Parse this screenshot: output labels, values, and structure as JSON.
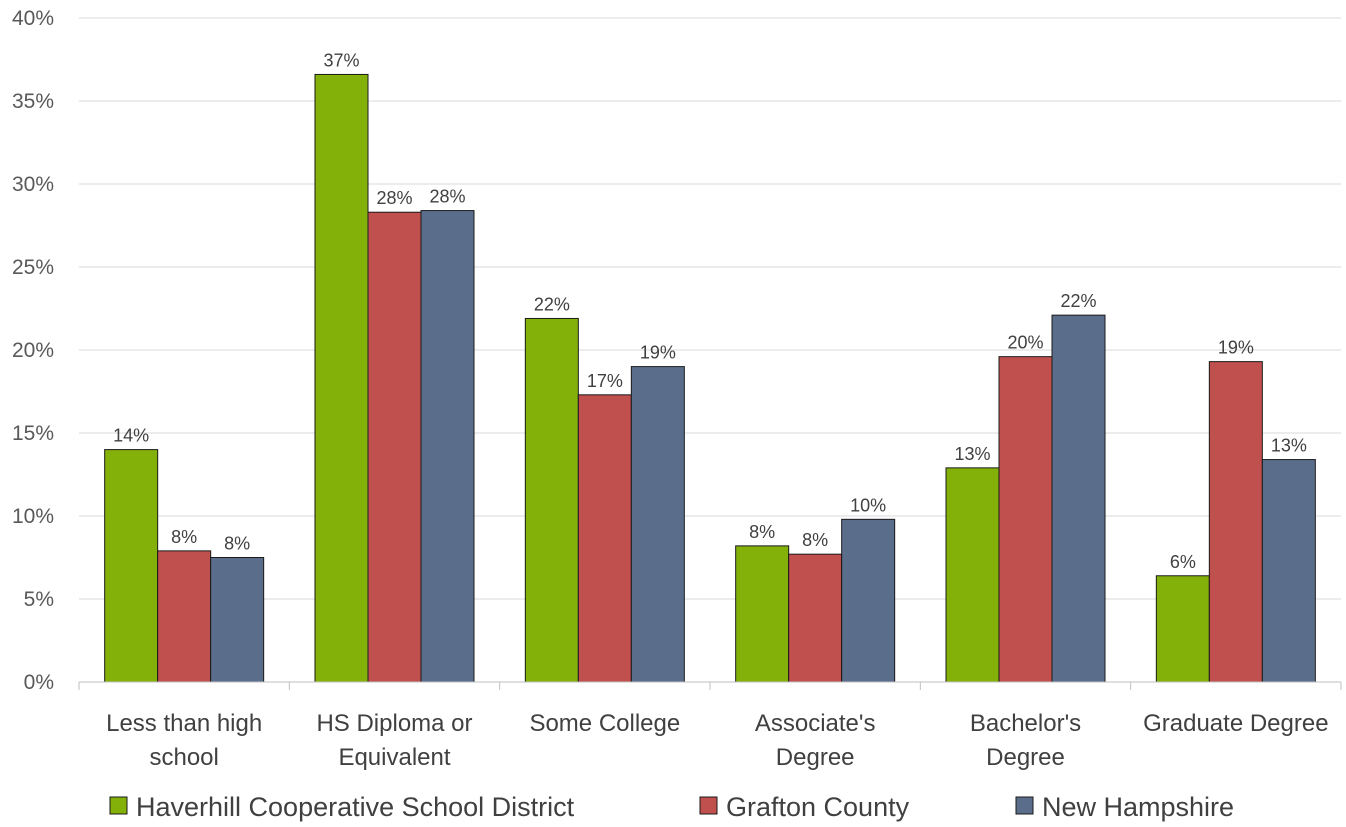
{
  "chart_data": {
    "type": "bar",
    "categories": [
      [
        "Less than high",
        "school"
      ],
      [
        "HS Diploma or",
        "Equivalent"
      ],
      [
        "Some College"
      ],
      [
        "Associate's",
        "Degree"
      ],
      [
        "Bachelor's",
        "Degree"
      ],
      [
        "Graduate Degree"
      ]
    ],
    "series": [
      {
        "name": "Haverhill Cooperative School District",
        "color": "#84b00a",
        "values": [
          14.0,
          36.6,
          21.9,
          8.2,
          12.9,
          6.4
        ],
        "labels": [
          "14%",
          "37%",
          "22%",
          "8%",
          "13%",
          "6%"
        ]
      },
      {
        "name": "Grafton County",
        "color": "#c0504d",
        "values": [
          7.9,
          28.3,
          17.3,
          7.7,
          19.6,
          19.3
        ],
        "labels": [
          "8%",
          "28%",
          "17%",
          "8%",
          "20%",
          "19%"
        ]
      },
      {
        "name": "New Hampshire",
        "color": "#5a6e8c",
        "values": [
          7.5,
          28.4,
          19.0,
          9.8,
          22.1,
          13.4
        ],
        "labels": [
          "8%",
          "28%",
          "19%",
          "10%",
          "22%",
          "13%"
        ]
      }
    ],
    "ylim": [
      0,
      40
    ],
    "yticks": [
      "0%",
      "5%",
      "10%",
      "15%",
      "20%",
      "25%",
      "30%",
      "35%",
      "40%"
    ],
    "grid": true,
    "legend_position": "bottom"
  }
}
